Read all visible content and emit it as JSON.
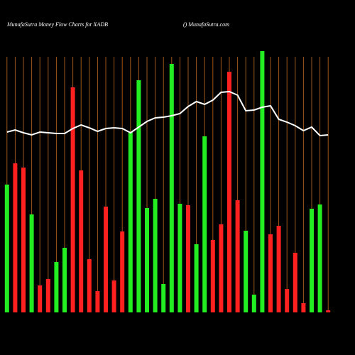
{
  "chart_data": {
    "type": "bar",
    "title": "MunafaSutra  Money Flow  Charts for XADB",
    "subtitle": "() MunafaSutra.com",
    "categories": [
      null,
      null,
      null,
      null,
      null,
      null,
      null,
      null,
      null,
      null,
      null,
      null,
      null,
      null,
      null,
      null,
      null,
      null,
      null,
      null,
      null,
      null,
      null,
      null,
      null,
      null,
      null,
      null,
      null,
      null,
      null,
      null,
      null,
      null,
      null,
      null,
      null,
      null,
      null,
      null
    ],
    "bars": {
      "values": [
        180,
        210,
        204,
        138,
        38,
        47,
        71,
        91,
        317,
        200,
        75,
        30,
        149,
        45,
        114,
        254,
        327,
        147,
        160,
        40,
        350,
        153,
        151,
        96,
        248,
        102,
        124,
        339,
        158,
        115,
        25,
        368,
        110,
        122,
        33,
        84,
        13,
        146,
        152,
        3
      ],
      "colors": [
        "#22ee22",
        "#ff2020",
        "#ff2020",
        "#22ee22",
        "#ff2020",
        "#ff2020",
        "#22ee22",
        "#22ee22",
        "#ff2020",
        "#ff2020",
        "#ff2020",
        "#ff2020",
        "#ff2020",
        "#ff2020",
        "#ff2020",
        "#22ee22",
        "#22ee22",
        "#22ee22",
        "#22ee22",
        "#22ee22",
        "#22ee22",
        "#22ee22",
        "#ff2020",
        "#22ee22",
        "#22ee22",
        "#ff2020",
        "#ff2020",
        "#ff2020",
        "#ff2020",
        "#22ee22",
        "#22ee22",
        "#22ee22",
        "#ff2020",
        "#ff2020",
        "#ff2020",
        "#ff2020",
        "#ff2020",
        "#22ee22",
        "#22ee22",
        "#ff2020"
      ]
    },
    "line": {
      "values": [
        254,
        257,
        253,
        250,
        254,
        253,
        252,
        252,
        259,
        264,
        260,
        255,
        259,
        260,
        259,
        253,
        261,
        269,
        274,
        275,
        277,
        280,
        290,
        297,
        293,
        299,
        310,
        311,
        306,
        284,
        285,
        289,
        291,
        272,
        268,
        263,
        256,
        261,
        249,
        250
      ],
      "color": "#ffffff"
    },
    "ylim": [
      0,
      370
    ],
    "grid": true,
    "grid_color": "#a0561a"
  }
}
